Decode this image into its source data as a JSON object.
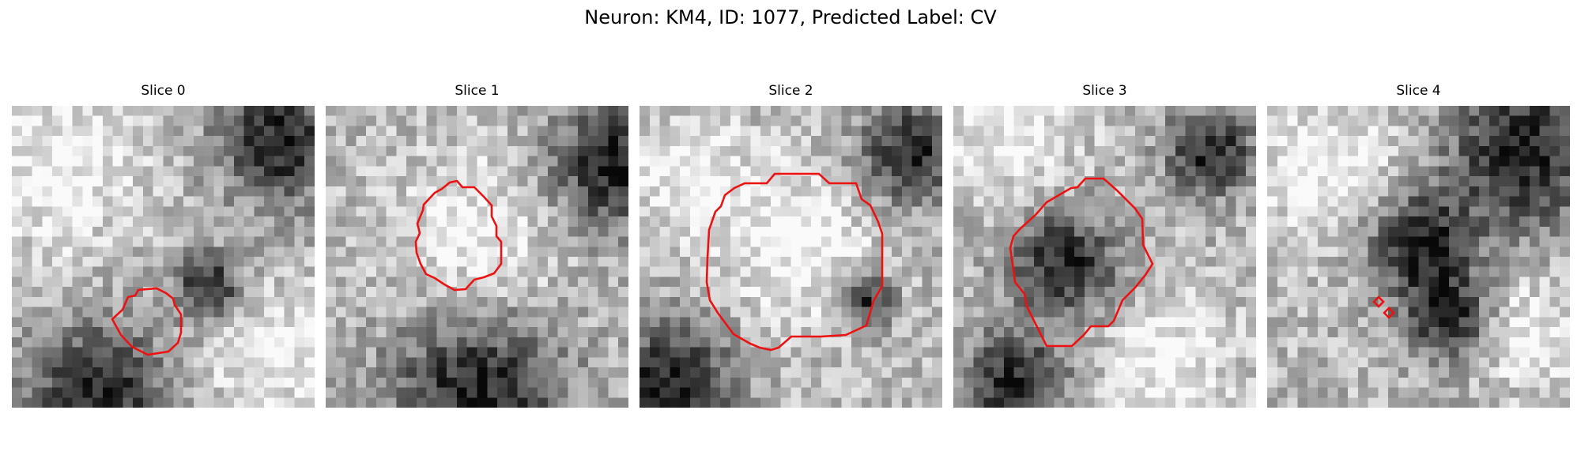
{
  "figure": {
    "suptitle": "Neuron: KM4, ID: 1077, Predicted Label: CV",
    "colormap": "gray",
    "contour_color": "#ee1111",
    "panels": [
      {
        "title": "Slice 0",
        "seed": 11,
        "dark_blobs": [
          [
            0.88,
            0.12,
            0.14
          ],
          [
            0.28,
            0.95,
            0.16
          ],
          [
            0.65,
            0.6,
            0.08
          ]
        ],
        "bright_blobs": [
          [
            0.85,
            0.82,
            0.15
          ],
          [
            0.15,
            0.2,
            0.2
          ]
        ]
      },
      {
        "title": "Slice 1",
        "seed": 23,
        "dark_blobs": [
          [
            0.95,
            0.2,
            0.15
          ],
          [
            0.5,
            0.95,
            0.2
          ]
        ],
        "bright_blobs": [
          [
            0.5,
            0.45,
            0.2
          ]
        ]
      },
      {
        "title": "Slice 2",
        "seed": 37,
        "dark_blobs": [
          [
            0.9,
            0.15,
            0.12
          ],
          [
            0.1,
            0.92,
            0.15
          ],
          [
            0.75,
            0.65,
            0.06
          ]
        ],
        "bright_blobs": [
          [
            0.5,
            0.45,
            0.2
          ],
          [
            0.15,
            0.2,
            0.12
          ]
        ]
      },
      {
        "title": "Slice 3",
        "seed": 51,
        "dark_blobs": [
          [
            0.37,
            0.52,
            0.12
          ],
          [
            0.2,
            0.92,
            0.12
          ],
          [
            0.85,
            0.15,
            0.1
          ]
        ],
        "bright_blobs": [
          [
            0.7,
            0.85,
            0.15
          ],
          [
            0.2,
            0.1,
            0.15
          ]
        ]
      },
      {
        "title": "Slice 4",
        "seed": 67,
        "dark_blobs": [
          [
            0.85,
            0.15,
            0.18
          ],
          [
            0.5,
            0.45,
            0.12
          ],
          [
            0.6,
            0.7,
            0.1
          ]
        ],
        "bright_blobs": [
          [
            0.2,
            0.2,
            0.18
          ],
          [
            0.85,
            0.75,
            0.12
          ]
        ]
      }
    ]
  }
}
